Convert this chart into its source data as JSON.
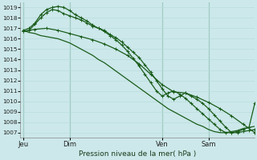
{
  "xlabel": "Pression niveau de la mer( hPa )",
  "bg_color": "#cce8ea",
  "grid_color": "#b0d8da",
  "line_color": "#1a5c1a",
  "ylim": [
    1006.5,
    1019.5
  ],
  "yticks": [
    1007,
    1008,
    1009,
    1010,
    1011,
    1012,
    1013,
    1014,
    1015,
    1016,
    1017,
    1018,
    1019
  ],
  "xtick_labels": [
    "Jeu",
    "Dim",
    "Ven",
    "Sam"
  ],
  "xtick_positions": [
    0,
    8,
    24,
    32
  ],
  "vline_positions": [
    0,
    8,
    24,
    32
  ],
  "xlim": [
    -0.5,
    40
  ],
  "line1_x": [
    0,
    1,
    2,
    3,
    4,
    5,
    6,
    7,
    8,
    9,
    10,
    11,
    12,
    13,
    14,
    15,
    16,
    17,
    18,
    19,
    20,
    21,
    22,
    23,
    24,
    25,
    26,
    27,
    28,
    29,
    30,
    31,
    32,
    33,
    34,
    35,
    36,
    37,
    38,
    39,
    40
  ],
  "line1_y": [
    1016.8,
    1016.6,
    1016.5,
    1016.3,
    1016.2,
    1016.1,
    1016.0,
    1015.8,
    1015.6,
    1015.3,
    1015.0,
    1014.7,
    1014.4,
    1014.0,
    1013.7,
    1013.3,
    1012.9,
    1012.5,
    1012.1,
    1011.7,
    1011.3,
    1010.9,
    1010.5,
    1010.1,
    1009.7,
    1009.3,
    1009.0,
    1008.7,
    1008.4,
    1008.1,
    1007.8,
    1007.6,
    1007.3,
    1007.1,
    1007.0,
    1007.0,
    1007.1,
    1007.2,
    1007.4,
    1007.5,
    1007.6
  ],
  "line2_x": [
    0,
    1,
    2,
    3,
    4,
    5,
    6,
    7,
    8,
    9,
    10,
    11,
    12,
    13,
    14,
    15,
    16,
    17,
    18,
    19,
    20,
    21,
    22,
    23,
    24,
    25,
    26,
    27,
    28,
    29,
    30,
    31,
    32,
    33,
    34,
    35,
    36,
    37,
    38,
    39,
    40
  ],
  "line2_y": [
    1016.7,
    1016.8,
    1017.4,
    1018.0,
    1018.5,
    1018.8,
    1018.7,
    1018.4,
    1018.2,
    1018.0,
    1017.8,
    1017.5,
    1017.2,
    1017.0,
    1016.8,
    1016.4,
    1016.1,
    1015.7,
    1015.2,
    1014.7,
    1014.2,
    1013.5,
    1012.8,
    1012.0,
    1011.2,
    1010.5,
    1010.2,
    1010.5,
    1010.8,
    1010.5,
    1010.2,
    1009.8,
    1009.3,
    1008.7,
    1008.1,
    1007.5,
    1007.0,
    1007.0,
    1007.1,
    1007.2,
    1007.3
  ],
  "line3_x": [
    0,
    1,
    2,
    3,
    4,
    5,
    6,
    7,
    8,
    9,
    10,
    11,
    12,
    13,
    14,
    15,
    16,
    17,
    18,
    19,
    20,
    21,
    22,
    23,
    24,
    25,
    26,
    27,
    28,
    29,
    30,
    31,
    32,
    33,
    34,
    35,
    36,
    37,
    38,
    39,
    40
  ],
  "line3_y": [
    1016.8,
    1017.0,
    1017.5,
    1018.3,
    1018.8,
    1019.0,
    1019.1,
    1019.0,
    1018.7,
    1018.3,
    1018.0,
    1017.7,
    1017.3,
    1017.0,
    1016.7,
    1016.3,
    1015.9,
    1015.4,
    1014.8,
    1014.1,
    1013.4,
    1012.6,
    1011.8,
    1011.0,
    1010.5,
    1010.8,
    1011.0,
    1010.7,
    1010.3,
    1009.8,
    1009.3,
    1008.8,
    1008.3,
    1007.8,
    1007.3,
    1007.0,
    1007.0,
    1007.1,
    1007.3,
    1007.5,
    1009.8
  ],
  "line4_x": [
    0,
    2,
    4,
    6,
    8,
    10,
    12,
    14,
    16,
    18,
    20,
    22,
    24,
    26,
    28,
    30,
    32,
    34,
    36,
    38,
    40
  ],
  "line4_y": [
    1016.7,
    1016.9,
    1017.0,
    1016.8,
    1016.5,
    1016.2,
    1015.9,
    1015.5,
    1015.0,
    1014.4,
    1013.6,
    1012.6,
    1011.6,
    1010.9,
    1010.8,
    1010.4,
    1009.9,
    1009.3,
    1008.6,
    1007.8,
    1007.0
  ]
}
